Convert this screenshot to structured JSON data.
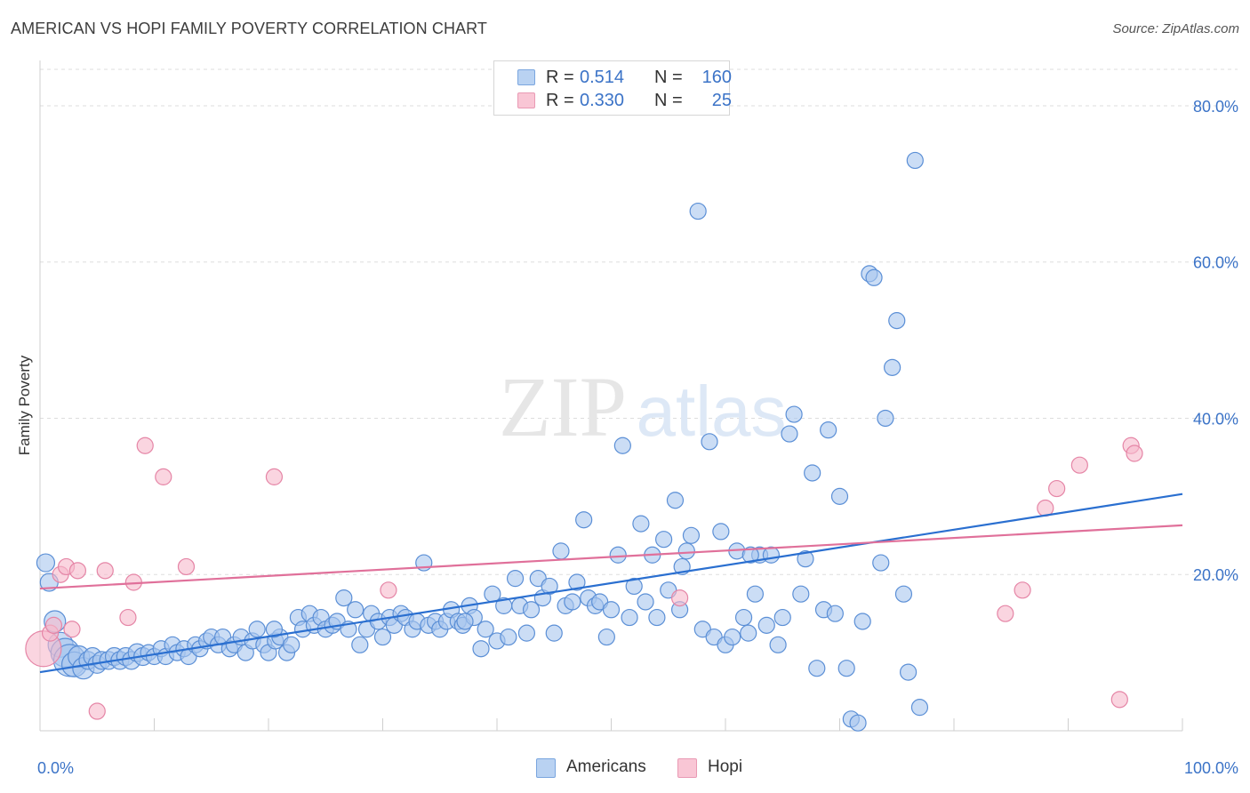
{
  "title": "AMERICAN VS HOPI FAMILY POVERTY CORRELATION CHART",
  "source": "Source: ZipAtlas.com",
  "watermark": {
    "zip": "ZIP",
    "atlas": "atlas"
  },
  "legend": {
    "items": [
      {
        "r_label": "R =",
        "r_value": "0.514",
        "n_label": "N =",
        "n_value": "160"
      },
      {
        "r_label": "R =",
        "r_value": "0.330",
        "n_label": "N =",
        "n_value": "25"
      }
    ]
  },
  "bottom_legend": [
    {
      "label": "Americans"
    },
    {
      "label": "Hopi"
    }
  ],
  "colors": {
    "americans_fill": "#a9c7ef",
    "americans_stroke": "#5b8fd6",
    "americans_line": "#2a6fd0",
    "hopi_fill": "#f7b9cc",
    "hopi_stroke": "#e585a6",
    "hopi_line": "#e0709a",
    "tick_label": "#3b73c7",
    "grid": "#dddddd"
  },
  "chart_data": {
    "type": "scatter",
    "title": "AMERICAN VS HOPI FAMILY POVERTY CORRELATION CHART",
    "xlabel": "",
    "ylabel": "Family Poverty",
    "xlim": [
      0,
      100
    ],
    "ylim": [
      0,
      85
    ],
    "x_tick_labels": [
      "0.0%",
      "100.0%"
    ],
    "y_ticks": [
      20,
      40,
      60,
      80
    ],
    "y_tick_labels": [
      "20.0%",
      "40.0%",
      "60.0%",
      "80.0%"
    ],
    "grid": true,
    "legend_position": "top-center",
    "series": [
      {
        "name": "Americans",
        "r": 0.514,
        "n": 160,
        "trend": {
          "x0": 0,
          "y0": 7.5,
          "x1": 100,
          "y1": 30.3
        },
        "points": [
          [
            0.5,
            21.5,
            10
          ],
          [
            0.8,
            19,
            10
          ],
          [
            1.3,
            14,
            12
          ],
          [
            1.8,
            11,
            14
          ],
          [
            2.2,
            10,
            16
          ],
          [
            2.6,
            9,
            18
          ],
          [
            3,
            8.5,
            14
          ],
          [
            3.4,
            9.5,
            12
          ],
          [
            3.8,
            8,
            12
          ],
          [
            4.2,
            9,
            10
          ],
          [
            4.6,
            9.5,
            10
          ],
          [
            5,
            8.5,
            10
          ],
          [
            5.4,
            9,
            10
          ],
          [
            6,
            9,
            10
          ],
          [
            6.5,
            9.5,
            10
          ],
          [
            7,
            9,
            10
          ],
          [
            7.5,
            9.5,
            10
          ],
          [
            8,
            9,
            10
          ],
          [
            8.5,
            10,
            10
          ],
          [
            9,
            9.5,
            10
          ],
          [
            9.5,
            10,
            9
          ],
          [
            10,
            9.5,
            9
          ],
          [
            10.6,
            10.5,
            9
          ],
          [
            11,
            9.5,
            9
          ],
          [
            11.6,
            11,
            9
          ],
          [
            12,
            10,
            9
          ],
          [
            12.6,
            10.5,
            9
          ],
          [
            13,
            9.5,
            9
          ],
          [
            13.6,
            11,
            9
          ],
          [
            14,
            10.5,
            9
          ],
          [
            14.6,
            11.5,
            9
          ],
          [
            15,
            12,
            9
          ],
          [
            15.6,
            11,
            9
          ],
          [
            16,
            12,
            9
          ],
          [
            16.6,
            10.5,
            9
          ],
          [
            17,
            11,
            9
          ],
          [
            17.6,
            12,
            9
          ],
          [
            18,
            10,
            9
          ],
          [
            18.6,
            11.5,
            9
          ],
          [
            19,
            13,
            9
          ],
          [
            19.6,
            11,
            9
          ],
          [
            20,
            10,
            9
          ],
          [
            20.6,
            11.5,
            9
          ],
          [
            21,
            12,
            9
          ],
          [
            21.6,
            10,
            9
          ],
          [
            22,
            11,
            9
          ],
          [
            22.6,
            14.5,
            9
          ],
          [
            23,
            13,
            9
          ],
          [
            23.6,
            15,
            9
          ],
          [
            24,
            13.5,
            9
          ],
          [
            24.6,
            14.5,
            9
          ],
          [
            25,
            13,
            9
          ],
          [
            25.6,
            13.5,
            9
          ],
          [
            26,
            14,
            9
          ],
          [
            26.6,
            17,
            9
          ],
          [
            27,
            13,
            9
          ],
          [
            27.6,
            15.5,
            9
          ],
          [
            28,
            11,
            9
          ],
          [
            28.6,
            13,
            9
          ],
          [
            29,
            15,
            9
          ],
          [
            29.6,
            14,
            9
          ],
          [
            30,
            12,
            9
          ],
          [
            30.6,
            14.5,
            9
          ],
          [
            31,
            13.5,
            9
          ],
          [
            31.6,
            15,
            9
          ],
          [
            32,
            14.5,
            9
          ],
          [
            32.6,
            13,
            9
          ],
          [
            33,
            14,
            9
          ],
          [
            33.6,
            21.5,
            9
          ],
          [
            34,
            13.5,
            9
          ],
          [
            34.6,
            14,
            9
          ],
          [
            35,
            13,
            9
          ],
          [
            35.6,
            14,
            9
          ],
          [
            36,
            15.5,
            9
          ],
          [
            36.6,
            14,
            9
          ],
          [
            37,
            13.5,
            9
          ],
          [
            37.6,
            16,
            9
          ],
          [
            38,
            14.5,
            9
          ],
          [
            38.6,
            10.5,
            9
          ],
          [
            39,
            13,
            9
          ],
          [
            39.6,
            17.5,
            9
          ],
          [
            40,
            11.5,
            9
          ],
          [
            40.6,
            16,
            9
          ],
          [
            41,
            12,
            9
          ],
          [
            41.6,
            19.5,
            9
          ],
          [
            42,
            16,
            9
          ],
          [
            42.6,
            12.5,
            9
          ],
          [
            43,
            15.5,
            9
          ],
          [
            43.6,
            19.5,
            9
          ],
          [
            44,
            17,
            9
          ],
          [
            44.6,
            18.5,
            9
          ],
          [
            45,
            12.5,
            9
          ],
          [
            45.6,
            23,
            9
          ],
          [
            46,
            16,
            9
          ],
          [
            46.6,
            16.5,
            9
          ],
          [
            47,
            19,
            9
          ],
          [
            47.6,
            27,
            9
          ],
          [
            48,
            17,
            9
          ],
          [
            48.6,
            16,
            9
          ],
          [
            49,
            16.5,
            9
          ],
          [
            49.6,
            12,
            9
          ],
          [
            50,
            15.5,
            9
          ],
          [
            50.6,
            22.5,
            9
          ],
          [
            51,
            36.5,
            9
          ],
          [
            51.6,
            14.5,
            9
          ],
          [
            52,
            18.5,
            9
          ],
          [
            52.6,
            26.5,
            9
          ],
          [
            53,
            16.5,
            9
          ],
          [
            53.6,
            22.5,
            9
          ],
          [
            54,
            14.5,
            9
          ],
          [
            54.6,
            24.5,
            9
          ],
          [
            55,
            18,
            9
          ],
          [
            55.6,
            29.5,
            9
          ],
          [
            56,
            15.5,
            9
          ],
          [
            56.6,
            23,
            9
          ],
          [
            57,
            25,
            9
          ],
          [
            57.6,
            66.5,
            9
          ],
          [
            58,
            13,
            9
          ],
          [
            58.6,
            37,
            9
          ],
          [
            59,
            12,
            9
          ],
          [
            59.6,
            25.5,
            9
          ],
          [
            60,
            11,
            9
          ],
          [
            60.6,
            12,
            9
          ],
          [
            61,
            23,
            9
          ],
          [
            61.6,
            14.5,
            9
          ],
          [
            62,
            12.5,
            9
          ],
          [
            62.6,
            17.5,
            9
          ],
          [
            63,
            22.5,
            9
          ],
          [
            63.6,
            13.5,
            9
          ],
          [
            64,
            22.5,
            9
          ],
          [
            64.6,
            11,
            9
          ],
          [
            65,
            14.5,
            9
          ],
          [
            65.6,
            38,
            9
          ],
          [
            66,
            40.5,
            9
          ],
          [
            66.6,
            17.5,
            9
          ],
          [
            67,
            22,
            9
          ],
          [
            67.6,
            33,
            9
          ],
          [
            68,
            8,
            9
          ],
          [
            68.6,
            15.5,
            9
          ],
          [
            69,
            38.5,
            9
          ],
          [
            69.6,
            15,
            9
          ],
          [
            70,
            30,
            9
          ],
          [
            70.6,
            8,
            9
          ],
          [
            71,
            1.5,
            9
          ],
          [
            71.6,
            1,
            9
          ],
          [
            72,
            14,
            9
          ],
          [
            72.6,
            58.5,
            9
          ],
          [
            73,
            58,
            9
          ],
          [
            73.6,
            21.5,
            9
          ],
          [
            74,
            40,
            9
          ],
          [
            74.6,
            46.5,
            9
          ],
          [
            75,
            52.5,
            9
          ],
          [
            75.6,
            17.5,
            9
          ],
          [
            76,
            7.5,
            9
          ],
          [
            76.6,
            73,
            9
          ],
          [
            77,
            3,
            9
          ],
          [
            20.5,
            13,
            9
          ],
          [
            37.2,
            14,
            9
          ],
          [
            56.2,
            21,
            9
          ],
          [
            62.2,
            22.5,
            9
          ]
        ]
      },
      {
        "name": "Hopi",
        "r": 0.33,
        "n": 25,
        "trend": {
          "x0": 0,
          "y0": 18.2,
          "x1": 100,
          "y1": 26.3
        },
        "points": [
          [
            0.3,
            10.5,
            20
          ],
          [
            0.9,
            12.5,
            9
          ],
          [
            1.2,
            13.5,
            9
          ],
          [
            1.8,
            20,
            9
          ],
          [
            2.3,
            21,
            9
          ],
          [
            2.8,
            13,
            9
          ],
          [
            3.3,
            20.5,
            9
          ],
          [
            5.0,
            2.5,
            9
          ],
          [
            5.7,
            20.5,
            9
          ],
          [
            7.7,
            14.5,
            9
          ],
          [
            8.2,
            19,
            9
          ],
          [
            9.2,
            36.5,
            9
          ],
          [
            10.8,
            32.5,
            9
          ],
          [
            12.8,
            21,
            9
          ],
          [
            20.5,
            32.5,
            9
          ],
          [
            30.5,
            18,
            9
          ],
          [
            56,
            17,
            9
          ],
          [
            84.5,
            15,
            9
          ],
          [
            86,
            18,
            9
          ],
          [
            88,
            28.5,
            9
          ],
          [
            89,
            31,
            9
          ],
          [
            91,
            34,
            9
          ],
          [
            94.5,
            4,
            9
          ],
          [
            95.5,
            36.5,
            9
          ],
          [
            95.8,
            35.5,
            9
          ]
        ]
      }
    ]
  }
}
